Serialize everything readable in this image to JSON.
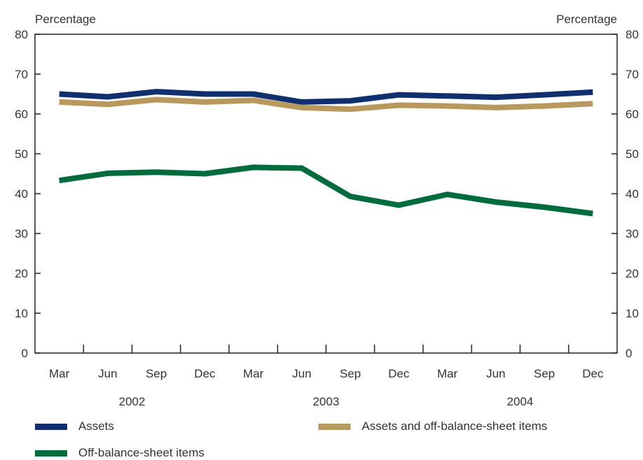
{
  "chart_data": {
    "type": "line",
    "left_axis_title": "Percentage",
    "right_axis_title": "Percentage",
    "ylim": [
      0,
      80
    ],
    "yticks": [
      0,
      10,
      20,
      30,
      40,
      50,
      60,
      70,
      80
    ],
    "categories": [
      "Mar",
      "Jun",
      "Sep",
      "Dec",
      "Mar",
      "Jun",
      "Sep",
      "Dec",
      "Mar",
      "Jun",
      "Sep",
      "Dec"
    ],
    "years": [
      "2002",
      "2003",
      "2004"
    ],
    "grid": false,
    "legend_position": "bottom",
    "series": [
      {
        "name": "Assets",
        "color": "#0f2f6f",
        "values": [
          65.0,
          64.3,
          65.6,
          65.0,
          65.0,
          63.0,
          63.3,
          64.8,
          64.5,
          64.2,
          64.8,
          65.5
        ]
      },
      {
        "name": "Assets and off-balance-sheet items",
        "color": "#b8985c",
        "values": [
          63.0,
          62.4,
          63.6,
          63.0,
          63.4,
          61.6,
          61.2,
          62.2,
          62.0,
          61.6,
          62.0,
          62.6
        ]
      },
      {
        "name": "Off-balance-sheet items",
        "color": "#006b3c",
        "values": [
          43.3,
          45.1,
          45.4,
          45.0,
          46.6,
          46.4,
          39.3,
          37.1,
          39.8,
          37.9,
          36.6,
          35.0
        ]
      }
    ]
  }
}
